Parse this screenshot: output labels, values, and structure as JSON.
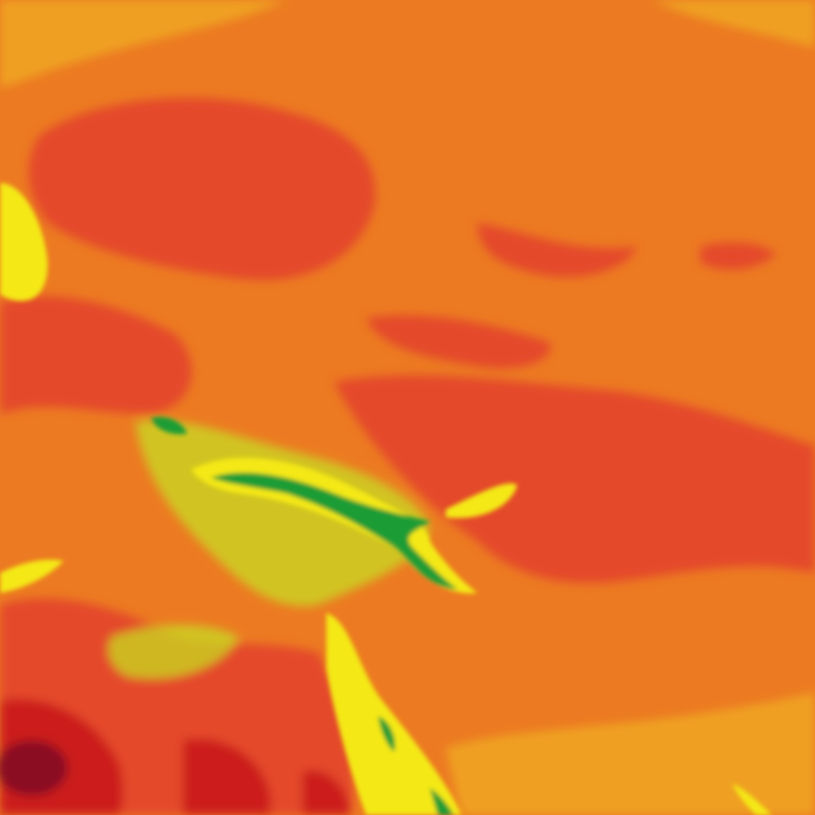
{
  "map": {
    "type": "heatmap-raster",
    "palette": {
      "base": "#ec7a22",
      "light_orange": "#efa020",
      "red_orange": "#e4482a",
      "dark_red": "#cc1a1e",
      "deep_red": "#8a0f22",
      "yellow": "#f4e812",
      "yellow_green": "#c8dc20",
      "green": "#1f9c34"
    }
  }
}
